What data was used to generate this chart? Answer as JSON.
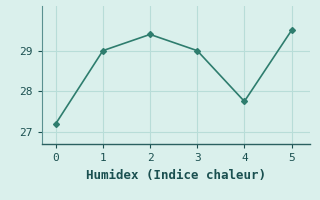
{
  "x": [
    0,
    1,
    2,
    3,
    4,
    5
  ],
  "y": [
    27.2,
    29.0,
    29.4,
    29.0,
    27.75,
    29.5
  ],
  "line_color": "#2e7d6e",
  "marker": "D",
  "marker_size": 3,
  "xlabel": "Humidex (Indice chaleur)",
  "ylim": [
    26.7,
    30.1
  ],
  "xlim": [
    -0.3,
    5.4
  ],
  "yticks": [
    27,
    28,
    29
  ],
  "xticks": [
    0,
    1,
    2,
    3,
    4,
    5
  ],
  "grid_color": "#b8ddd8",
  "bg_color": "#daf0ec",
  "xlabel_fontsize": 9,
  "tick_fontsize": 8,
  "line_width": 1.2
}
